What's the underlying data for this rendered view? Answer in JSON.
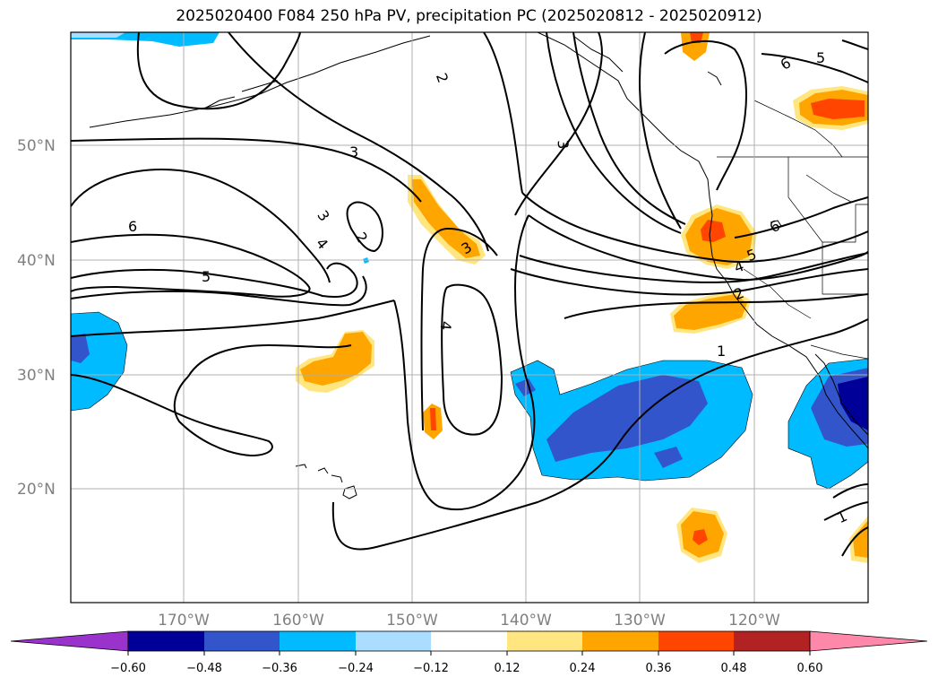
{
  "title": "2025020400 F084 250 hPa PV, precipitation PC (2025020812 - 2025020912)",
  "latitude_labels": [
    "50°N",
    "40°N",
    "30°N",
    "20°N"
  ],
  "longitude_labels": [
    "170°W",
    "160°W",
    "150°W",
    "140°W",
    "130°W",
    "120°W"
  ],
  "colorbar": {
    "tick_labels": [
      "−0.60",
      "−0.48",
      "−0.36",
      "−0.24",
      "−0.12",
      "0.12",
      "0.24",
      "0.36",
      "0.48",
      "0.60"
    ],
    "colors": [
      "#9933cc",
      "#000099",
      "#3355cc",
      "#00bbff",
      "#aaddff",
      "#ffffff",
      "#ffe680",
      "#ffa500",
      "#ff4500",
      "#b22222",
      "#ff88aa"
    ]
  },
  "pv_contour_labels": [
    {
      "text": "2"
    },
    {
      "text": "3"
    },
    {
      "text": "6"
    },
    {
      "text": "5"
    },
    {
      "text": "3"
    },
    {
      "text": "3"
    },
    {
      "text": "4"
    },
    {
      "text": "6"
    },
    {
      "text": "5"
    },
    {
      "text": "2"
    },
    {
      "text": "3"
    },
    {
      "text": "4"
    },
    {
      "text": "1"
    },
    {
      "text": "6"
    },
    {
      "text": "5"
    },
    {
      "text": "4"
    },
    {
      "text": "2"
    },
    {
      "text": "1"
    }
  ]
}
